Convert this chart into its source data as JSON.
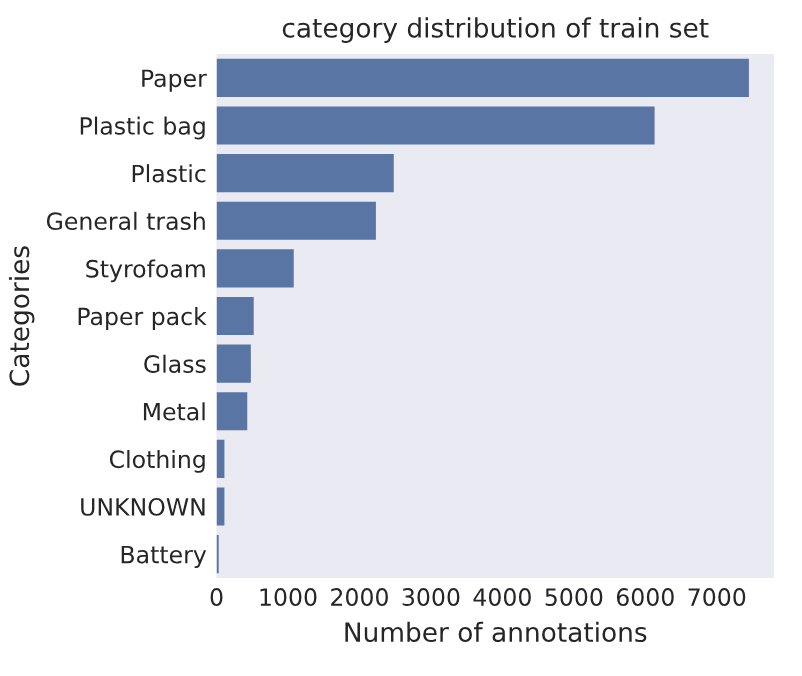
{
  "chart_data": {
    "type": "bar",
    "orientation": "horizontal",
    "title": "category distribution of train set",
    "xlabel": "Number of annotations",
    "ylabel": "Categories",
    "categories": [
      "Paper",
      "Plastic bag",
      "Plastic",
      "General trash",
      "Styrofoam",
      "Paper pack",
      "Glass",
      "Metal",
      "Clothing",
      "UNKNOWN",
      "Battery"
    ],
    "values": [
      7450,
      6130,
      2480,
      2230,
      1080,
      520,
      480,
      430,
      110,
      110,
      30
    ],
    "color": "#5975a4",
    "xlim": [
      0,
      7800
    ],
    "xticks": [
      0,
      1000,
      2000,
      3000,
      4000,
      5000,
      6000,
      7000
    ],
    "grid": false
  }
}
